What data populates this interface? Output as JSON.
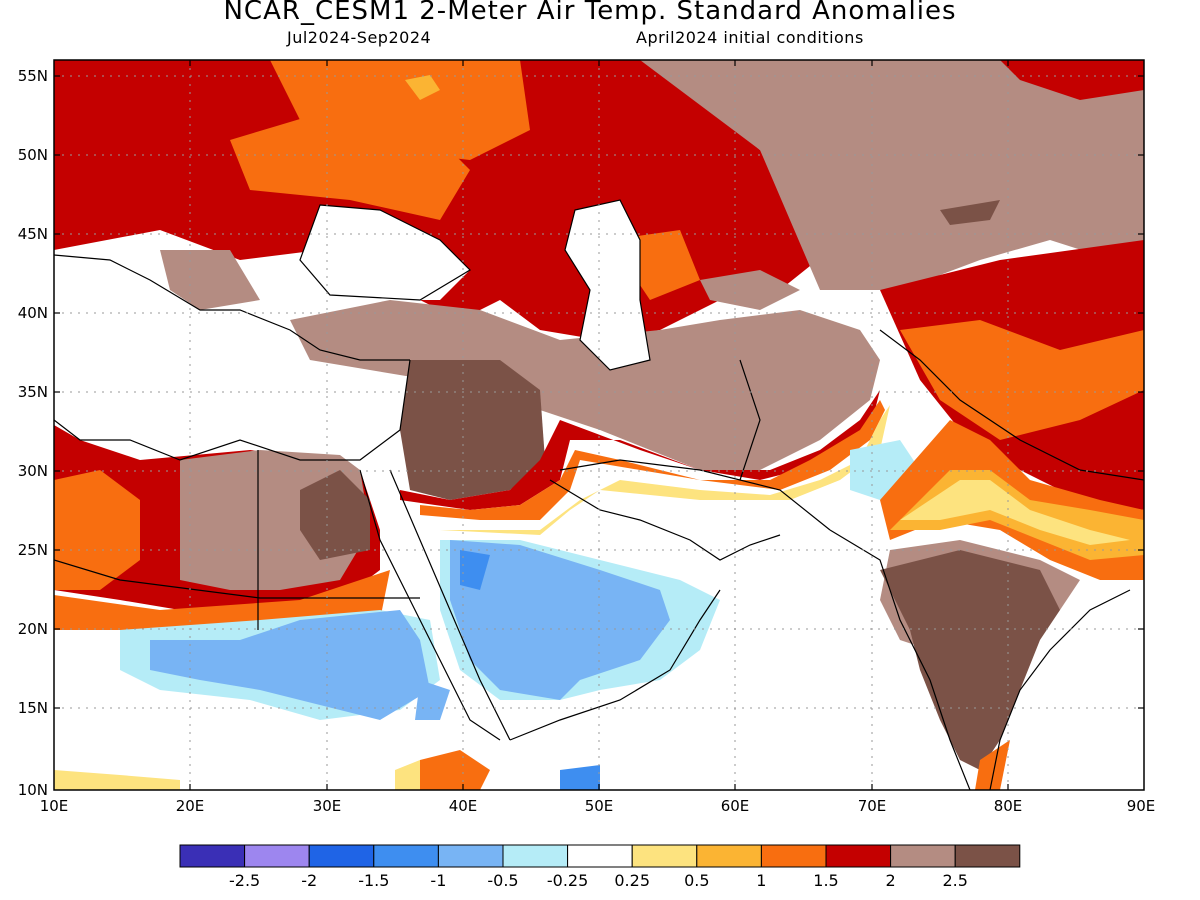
{
  "header": {
    "title": "NCAR_CESM1 2-Meter Air Temp. Standard Anomalies",
    "period": "Jul2024-Sep2024",
    "init": "April2024 initial conditions"
  },
  "axes": {
    "lat_labels": [
      "55N",
      "50N",
      "45N",
      "40N",
      "35N",
      "30N",
      "25N",
      "20N",
      "15N",
      "10N"
    ],
    "lon_labels": [
      "10E",
      "20E",
      "30E",
      "40E",
      "50E",
      "60E",
      "70E",
      "80E",
      "90E"
    ]
  },
  "colorbar": {
    "colors": [
      "#3a2fb6",
      "#9d86ef",
      "#1f64e6",
      "#3e8ef0",
      "#78b4f4",
      "#b5ecf7",
      "#ffffff",
      "#fde37f",
      "#fbb433",
      "#f86e10",
      "#c40000",
      "#b48c82",
      "#7b5247"
    ],
    "tick_labels": [
      "-2.5",
      "-2",
      "-1.5",
      "-1",
      "-0.5",
      "-0.25",
      "0.25",
      "0.5",
      "1",
      "1.5",
      "2",
      "2.5"
    ]
  },
  "colors": {
    "dark_brown": "#7b5247",
    "light_brown": "#b48c82",
    "dark_red": "#c40000",
    "orange_red": "#f86e10",
    "orange": "#fbb433",
    "yellow": "#fde37f",
    "light_cyan": "#b5ecf7",
    "light_blue": "#78b4f4",
    "blue": "#3e8ef0"
  }
}
